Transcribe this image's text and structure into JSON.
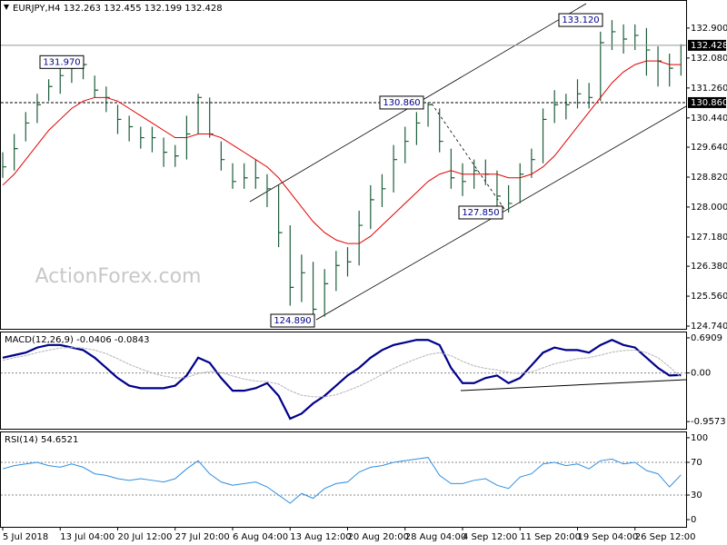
{
  "chart_data": [
    {
      "type": "ohlc",
      "title": "EURJPY,H4  132.263 132.455 132.199 132.428",
      "watermark": "ActionForex.com",
      "categories": [
        "5 Jul 2018",
        null,
        null,
        null,
        null,
        "13 Jul 04:00",
        null,
        null,
        null,
        null,
        "20 Jul 12:00",
        null,
        null,
        null,
        null,
        "27 Jul 20:00",
        null,
        null,
        null,
        null,
        "6 Aug 04:00",
        null,
        null,
        null,
        null,
        "13 Aug 12:00",
        null,
        null,
        null,
        null,
        "20 Aug 20:00",
        null,
        null,
        null,
        null,
        "28 Aug 04:00",
        null,
        null,
        null,
        null,
        "4 Sep 12:00",
        null,
        null,
        null,
        null,
        "11 Sep 20:00",
        null,
        null,
        null,
        null,
        "19 Sep 04:00",
        null,
        null,
        null,
        null,
        "26 Sep 12:00",
        null,
        null,
        null,
        null
      ],
      "color": "#1d5e3a",
      "high": [
        129.5,
        130.0,
        130.6,
        131.1,
        131.5,
        131.8,
        131.9,
        131.97,
        131.6,
        131.3,
        130.8,
        130.5,
        130.2,
        130.2,
        129.9,
        129.7,
        130.5,
        131.1,
        131.0,
        129.8,
        129.2,
        129.2,
        129.3,
        128.9,
        128.6,
        127.5,
        126.7,
        126.5,
        126.3,
        126.8,
        126.9,
        127.9,
        128.6,
        128.9,
        129.7,
        130.2,
        130.6,
        130.86,
        130.7,
        129.6,
        129.2,
        129.3,
        129.3,
        129.0,
        128.6,
        129.2,
        129.6,
        130.7,
        131.2,
        131.1,
        131.5,
        131.4,
        132.8,
        133.12,
        133.0,
        133.0,
        132.9,
        132.4,
        132.2,
        132.455
      ],
      "low": [
        128.8,
        129.0,
        129.8,
        130.3,
        130.9,
        131.1,
        131.4,
        131.5,
        131.0,
        130.6,
        130.0,
        129.8,
        129.6,
        129.5,
        129.1,
        129.1,
        129.3,
        130.0,
        129.9,
        129.0,
        128.5,
        128.5,
        128.5,
        128.0,
        126.9,
        125.3,
        125.4,
        124.89,
        125.0,
        125.7,
        126.1,
        126.4,
        127.4,
        128.0,
        128.4,
        129.2,
        129.7,
        130.2,
        129.5,
        128.5,
        128.3,
        128.5,
        128.6,
        128.0,
        127.85,
        128.1,
        128.8,
        129.2,
        130.3,
        130.4,
        130.7,
        130.7,
        130.9,
        132.3,
        132.2,
        132.3,
        131.6,
        131.3,
        131.3,
        131.6
      ],
      "close": [
        129.1,
        129.6,
        130.3,
        130.8,
        131.3,
        131.6,
        131.8,
        131.9,
        131.2,
        131.0,
        130.4,
        130.2,
        129.9,
        129.9,
        129.5,
        129.4,
        130.0,
        131.0,
        130.0,
        129.3,
        128.7,
        128.8,
        128.8,
        128.5,
        127.3,
        125.8,
        126.2,
        125.2,
        125.9,
        126.4,
        126.5,
        127.5,
        128.2,
        128.5,
        129.3,
        129.8,
        130.3,
        130.8,
        129.8,
        128.8,
        128.7,
        129.0,
        128.9,
        128.3,
        128.1,
        128.9,
        129.3,
        130.4,
        130.8,
        130.8,
        131.1,
        131.0,
        132.5,
        132.8,
        132.6,
        132.7,
        132.3,
        132.0,
        131.8,
        132.428
      ],
      "series": [
        {
          "color": "#e00000",
          "values": [
            128.6,
            128.9,
            129.3,
            129.7,
            130.1,
            130.4,
            130.7,
            130.9,
            131.0,
            131.0,
            130.9,
            130.7,
            130.5,
            130.3,
            130.1,
            129.9,
            129.9,
            130.0,
            130.0,
            129.9,
            129.7,
            129.5,
            129.3,
            129.1,
            128.8,
            128.4,
            128.0,
            127.6,
            127.3,
            127.1,
            127.0,
            127.0,
            127.2,
            127.5,
            127.8,
            128.1,
            128.4,
            128.7,
            128.9,
            129.0,
            128.9,
            128.9,
            128.9,
            128.9,
            128.8,
            128.8,
            128.9,
            129.1,
            129.4,
            129.8,
            130.2,
            130.6,
            131.0,
            131.4,
            131.7,
            131.9,
            132.0,
            132.0,
            131.9,
            131.9
          ]
        }
      ],
      "ylim": [
        124.666,
        133.644
      ],
      "yticks": [
        {
          "value": 132.9,
          "label": "132.900"
        },
        {
          "value": 132.08,
          "label": "132.080"
        },
        {
          "value": 131.26,
          "label": "131.260"
        },
        {
          "value": 130.44,
          "label": "130.440"
        },
        {
          "value": 129.64,
          "label": "129.640"
        },
        {
          "value": 128.82,
          "label": "128.820"
        },
        {
          "value": 128.0,
          "label": "128.000"
        },
        {
          "value": 127.18,
          "label": "127.180"
        },
        {
          "value": 126.38,
          "label": "126.380"
        },
        {
          "value": 125.56,
          "label": "125.560"
        },
        {
          "value": 124.74,
          "label": "124.740"
        }
      ],
      "price_lines": [
        {
          "value": 132.428,
          "label": "132.428",
          "style": "solid"
        },
        {
          "value": 130.86,
          "label": "130.860",
          "style": "dashed"
        }
      ],
      "annotations": [
        {
          "value": 131.97,
          "label": "131.970"
        },
        {
          "value": 124.89,
          "label": "124.890"
        },
        {
          "value": 130.86,
          "label": "130.860"
        },
        {
          "value": 127.85,
          "label": "127.850"
        },
        {
          "value": 133.12,
          "label": "133.120"
        }
      ]
    },
    {
      "type": "line",
      "title": "MACD(12,26,9) -0.0406 -0.0843",
      "series": [
        {
          "color": "#00008b",
          "values": [
            0.3,
            0.35,
            0.4,
            0.5,
            0.55,
            0.55,
            0.5,
            0.45,
            0.3,
            0.1,
            -0.1,
            -0.25,
            -0.3,
            -0.3,
            -0.3,
            -0.25,
            -0.05,
            0.3,
            0.2,
            -0.1,
            -0.35,
            -0.35,
            -0.3,
            -0.2,
            -0.45,
            -0.9,
            -0.8,
            -0.6,
            -0.45,
            -0.25,
            -0.05,
            0.1,
            0.3,
            0.45,
            0.55,
            0.6,
            0.65,
            0.65,
            0.55,
            0.1,
            -0.2,
            -0.2,
            -0.1,
            -0.05,
            -0.2,
            -0.1,
            0.15,
            0.4,
            0.5,
            0.45,
            0.45,
            0.4,
            0.55,
            0.65,
            0.55,
            0.5,
            0.3,
            0.1,
            -0.05,
            -0.0406
          ]
        },
        {
          "color": "#b4b4b4",
          "values": [
            0.25,
            0.3,
            0.34,
            0.4,
            0.45,
            0.49,
            0.5,
            0.49,
            0.45,
            0.38,
            0.28,
            0.17,
            0.08,
            0.0,
            -0.06,
            -0.1,
            -0.09,
            -0.01,
            0.03,
            0.01,
            -0.06,
            -0.12,
            -0.16,
            -0.17,
            -0.22,
            -0.35,
            -0.44,
            -0.47,
            -0.47,
            -0.43,
            -0.35,
            -0.26,
            -0.15,
            -0.03,
            0.09,
            0.19,
            0.28,
            0.36,
            0.4,
            0.34,
            0.23,
            0.14,
            0.09,
            0.06,
            0.01,
            -0.01,
            0.02,
            0.1,
            0.18,
            0.23,
            0.28,
            0.3,
            0.35,
            0.41,
            0.44,
            0.45,
            0.4,
            0.3,
            0.12,
            -0.0843
          ]
        }
      ],
      "ylim": [
        -1.098,
        0.797
      ],
      "yticks": [
        0.6909,
        {
          "value": 0,
          "label": "0.00"
        },
        -0.9573
      ],
      "levels": [
        0
      ]
    },
    {
      "type": "line",
      "title": "RSI(14) 54.6521",
      "series": [
        {
          "color": "#2f8fe0",
          "values": [
            62,
            66,
            68,
            70,
            66,
            64,
            68,
            64,
            56,
            54,
            50,
            48,
            50,
            48,
            46,
            50,
            62,
            72,
            56,
            46,
            42,
            44,
            46,
            40,
            30,
            20,
            32,
            26,
            38,
            44,
            46,
            58,
            64,
            66,
            70,
            72,
            74,
            76,
            54,
            44,
            44,
            48,
            50,
            42,
            38,
            52,
            56,
            68,
            70,
            66,
            68,
            62,
            72,
            74,
            68,
            70,
            60,
            56,
            40,
            54.6521
          ]
        }
      ],
      "ylim": [
        -8.8,
        106.6
      ],
      "yticks": [
        100,
        70,
        30,
        0
      ],
      "levels": [
        70,
        30
      ]
    }
  ]
}
